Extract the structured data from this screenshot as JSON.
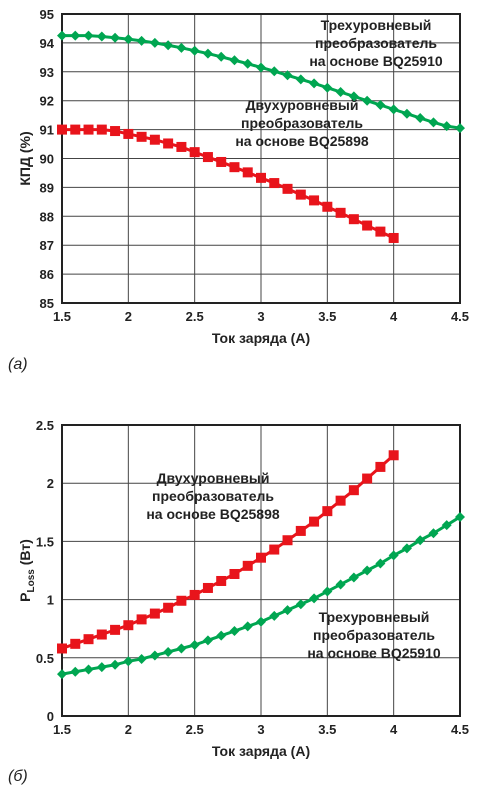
{
  "chart_data": [
    {
      "type": "line",
      "panel_label": "(a)",
      "xlabel": "Ток заряда (A)",
      "ylabel": "КПД (%)",
      "xlim": [
        1.5,
        4.5
      ],
      "ylim": [
        85,
        95
      ],
      "xticks": [
        "1.5",
        "2",
        "2.5",
        "3",
        "3.5",
        "4",
        "4.5"
      ],
      "yticks": [
        "85",
        "86",
        "87",
        "88",
        "89",
        "90",
        "91",
        "92",
        "93",
        "94",
        "95"
      ],
      "grid": true,
      "series": [
        {
          "name": "Трехуровневый преобразователь на основе BQ25910",
          "color": "#00a651",
          "marker": "diamond",
          "label_lines": [
            "Трехуровневый",
            "преобразователь",
            "на основе BQ25910"
          ],
          "x": [
            1.5,
            1.6,
            1.7,
            1.8,
            1.9,
            2.0,
            2.1,
            2.2,
            2.3,
            2.4,
            2.5,
            2.6,
            2.7,
            2.8,
            2.9,
            3.0,
            3.1,
            3.2,
            3.3,
            3.4,
            3.5,
            3.6,
            3.7,
            3.8,
            3.9,
            4.0,
            4.1,
            4.2,
            4.3,
            4.4,
            4.5
          ],
          "y": [
            94.25,
            94.25,
            94.25,
            94.22,
            94.18,
            94.13,
            94.07,
            94.0,
            93.92,
            93.83,
            93.73,
            93.63,
            93.52,
            93.4,
            93.28,
            93.15,
            93.02,
            92.88,
            92.74,
            92.6,
            92.45,
            92.3,
            92.15,
            92.0,
            91.85,
            91.7,
            91.55,
            91.4,
            91.25,
            91.12,
            91.05
          ]
        },
        {
          "name": "Двухуровневый преобразователь на основе BQ25898",
          "color": "#e8141b",
          "marker": "square",
          "label_lines": [
            "Двухуровневый",
            "преобразователь",
            "на основе BQ25898"
          ],
          "x": [
            1.5,
            1.6,
            1.7,
            1.8,
            1.9,
            2.0,
            2.1,
            2.2,
            2.3,
            2.4,
            2.5,
            2.6,
            2.7,
            2.8,
            2.9,
            3.0,
            3.1,
            3.2,
            3.3,
            3.4,
            3.5,
            3.6,
            3.7,
            3.8,
            3.9,
            4.0
          ],
          "y": [
            91.0,
            91.0,
            91.0,
            91.0,
            90.95,
            90.85,
            90.75,
            90.65,
            90.52,
            90.4,
            90.22,
            90.05,
            89.88,
            89.7,
            89.52,
            89.33,
            89.15,
            88.95,
            88.75,
            88.55,
            88.33,
            88.12,
            87.9,
            87.68,
            87.47,
            87.25
          ]
        }
      ]
    },
    {
      "type": "line",
      "panel_label": "(б)",
      "xlabel": "Ток заряда (A)",
      "ylabel": "P",
      "ylabel_sub": "Loss",
      "ylabel_unit": " (Вт)",
      "xlim": [
        1.5,
        4.5
      ],
      "ylim": [
        0,
        2.5
      ],
      "xticks": [
        "1.5",
        "2",
        "2.5",
        "3",
        "3.5",
        "4",
        "4.5"
      ],
      "yticks": [
        "0",
        "0.5",
        "1",
        "1.5",
        "2",
        "2.5"
      ],
      "grid": true,
      "series": [
        {
          "name": "Двухуровневый преобразователь на основе BQ25898",
          "color": "#e8141b",
          "marker": "square",
          "label_lines": [
            "Двухуровневый",
            "преобразователь",
            "на основе BQ25898"
          ],
          "x": [
            1.5,
            1.6,
            1.7,
            1.8,
            1.9,
            2.0,
            2.1,
            2.2,
            2.3,
            2.4,
            2.5,
            2.6,
            2.7,
            2.8,
            2.9,
            3.0,
            3.1,
            3.2,
            3.3,
            3.4,
            3.5,
            3.6,
            3.7,
            3.8,
            3.9,
            4.0
          ],
          "y": [
            0.58,
            0.62,
            0.66,
            0.7,
            0.74,
            0.78,
            0.83,
            0.88,
            0.93,
            0.99,
            1.04,
            1.1,
            1.16,
            1.22,
            1.29,
            1.36,
            1.43,
            1.51,
            1.59,
            1.67,
            1.76,
            1.85,
            1.94,
            2.04,
            2.14,
            2.24
          ]
        },
        {
          "name": "Трехуровневый преобразователь на основе BQ25910",
          "color": "#00a651",
          "marker": "diamond",
          "label_lines": [
            "Трехуровневый",
            "преобразователь",
            "на основе BQ25910"
          ],
          "x": [
            1.5,
            1.6,
            1.7,
            1.8,
            1.9,
            2.0,
            2.1,
            2.2,
            2.3,
            2.4,
            2.5,
            2.6,
            2.7,
            2.8,
            2.9,
            3.0,
            3.1,
            3.2,
            3.3,
            3.4,
            3.5,
            3.6,
            3.7,
            3.8,
            3.9,
            4.0,
            4.1,
            4.2,
            4.3,
            4.4,
            4.5
          ],
          "y": [
            0.36,
            0.38,
            0.4,
            0.42,
            0.44,
            0.47,
            0.49,
            0.52,
            0.55,
            0.58,
            0.61,
            0.65,
            0.69,
            0.73,
            0.77,
            0.81,
            0.86,
            0.91,
            0.96,
            1.01,
            1.07,
            1.13,
            1.19,
            1.25,
            1.31,
            1.38,
            1.44,
            1.51,
            1.57,
            1.64,
            1.71
          ]
        }
      ]
    }
  ]
}
